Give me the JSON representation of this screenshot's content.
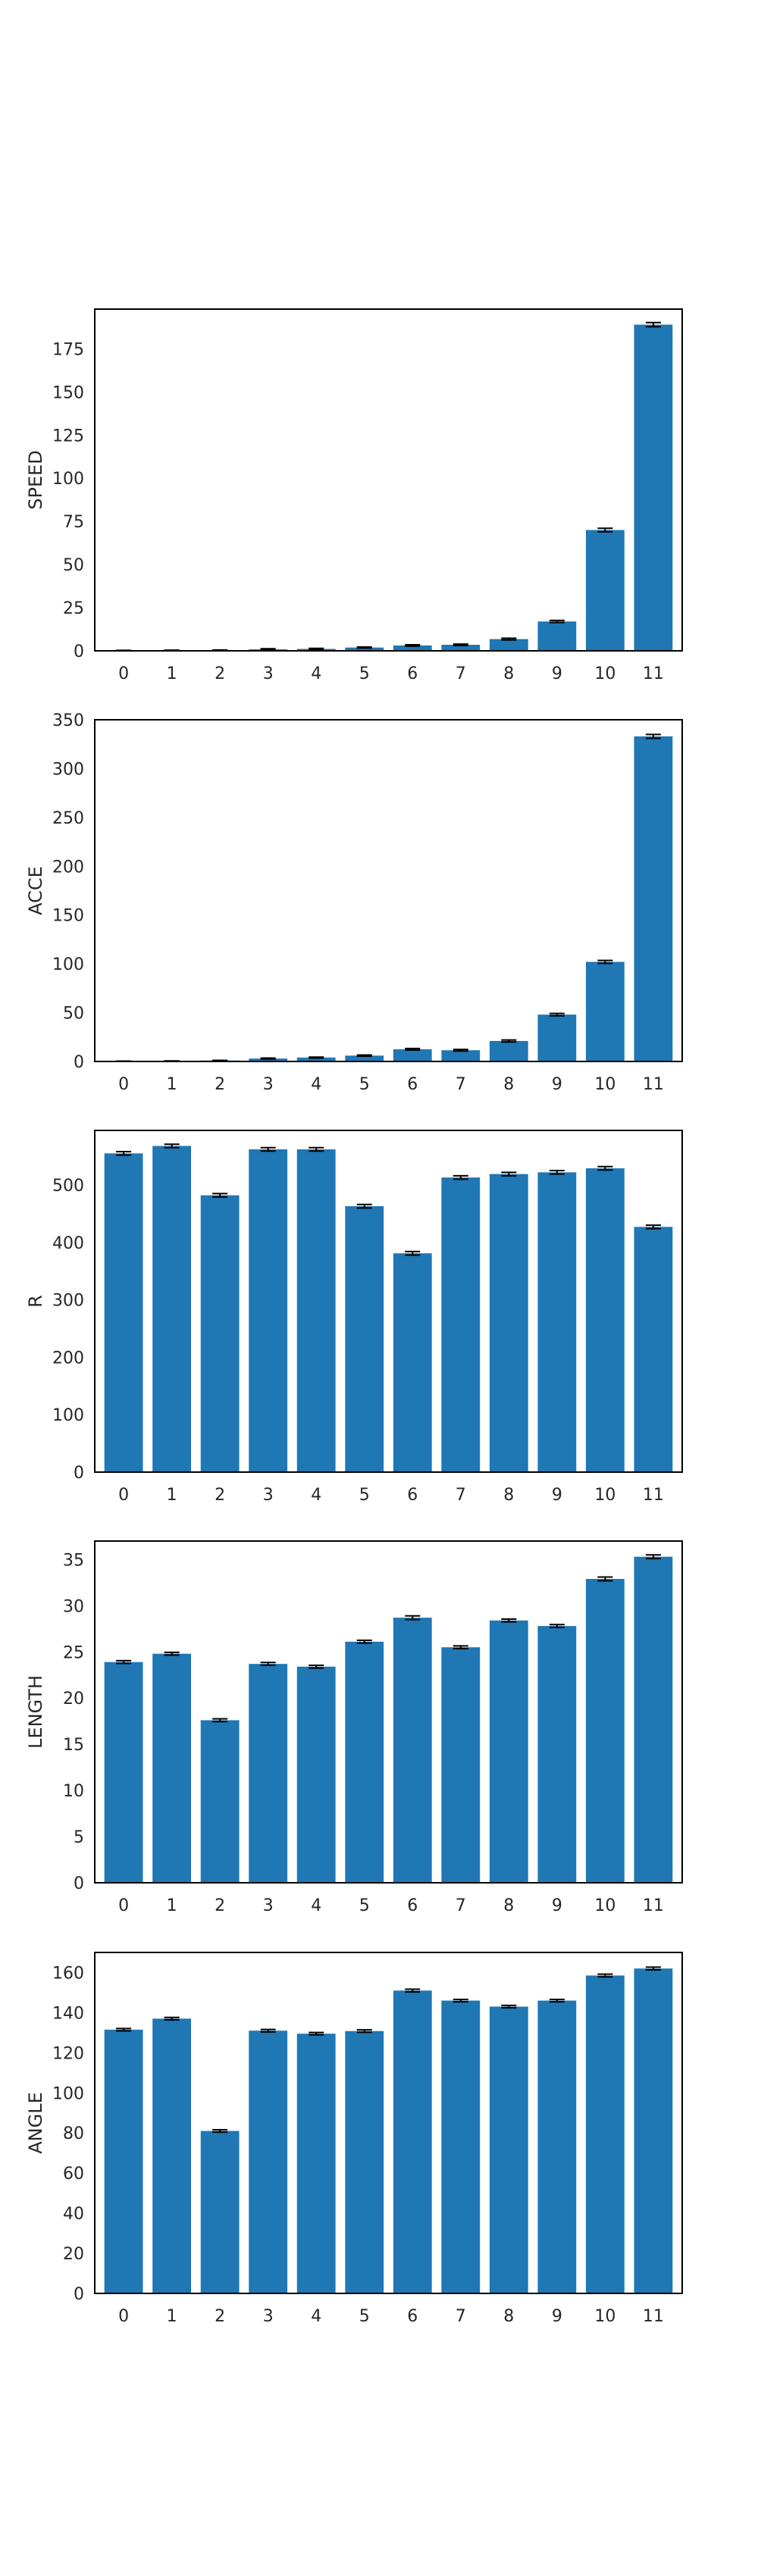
{
  "style": {
    "bar_color": "#1f77b4",
    "errorbar_color": "#000000",
    "frame_color": "#000000",
    "background": "#ffffff"
  },
  "chart_data": [
    {
      "type": "bar",
      "categories": [
        "0",
        "1",
        "2",
        "3",
        "4",
        "5",
        "6",
        "7",
        "8",
        "9",
        "10",
        "11"
      ],
      "values": [
        0.2,
        0.3,
        0.4,
        0.9,
        1.1,
        1.9,
        3.1,
        3.5,
        6.8,
        17.0,
        70.0,
        189.0
      ],
      "errors": [
        0.1,
        0.1,
        0.1,
        0.3,
        0.3,
        0.3,
        0.4,
        0.4,
        0.5,
        0.6,
        1.0,
        1.2
      ],
      "xlabel": "",
      "ylabel": "SPEED",
      "ylim": [
        0,
        198
      ],
      "yticks": [
        0,
        25,
        50,
        75,
        100,
        125,
        150,
        175
      ],
      "grid": false,
      "legend": false
    },
    {
      "type": "bar",
      "categories": [
        "0",
        "1",
        "2",
        "3",
        "4",
        "5",
        "6",
        "7",
        "8",
        "9",
        "10",
        "11"
      ],
      "values": [
        0.3,
        0.5,
        1.0,
        3.0,
        4.0,
        6.0,
        12.5,
        11.5,
        21.0,
        48.0,
        102.0,
        333.0
      ],
      "errors": [
        0.1,
        0.1,
        0.2,
        0.5,
        0.5,
        0.6,
        0.8,
        0.8,
        1.0,
        1.2,
        1.5,
        2.0
      ],
      "xlabel": "",
      "ylabel": "ACCE",
      "ylim": [
        0,
        350
      ],
      "yticks": [
        0,
        50,
        100,
        150,
        200,
        250,
        300,
        350
      ],
      "grid": false,
      "legend": false
    },
    {
      "type": "bar",
      "categories": [
        "0",
        "1",
        "2",
        "3",
        "4",
        "5",
        "6",
        "7",
        "8",
        "9",
        "10",
        "11"
      ],
      "values": [
        555,
        568,
        482,
        562,
        562,
        463,
        381,
        513,
        519,
        522,
        529,
        427
      ],
      "errors": [
        3,
        3,
        3,
        3,
        3,
        3,
        3,
        3,
        3,
        3,
        3,
        3
      ],
      "xlabel": "",
      "ylabel": "R",
      "ylim": [
        0,
        595
      ],
      "yticks": [
        0,
        100,
        200,
        300,
        400,
        500
      ],
      "grid": false,
      "legend": false
    },
    {
      "type": "bar",
      "categories": [
        "0",
        "1",
        "2",
        "3",
        "4",
        "5",
        "6",
        "7",
        "8",
        "9",
        "10",
        "11"
      ],
      "values": [
        23.9,
        24.8,
        17.6,
        23.7,
        23.4,
        26.1,
        28.7,
        25.5,
        28.4,
        27.8,
        32.9,
        35.3
      ],
      "errors": [
        0.15,
        0.15,
        0.15,
        0.15,
        0.15,
        0.15,
        0.2,
        0.15,
        0.15,
        0.15,
        0.2,
        0.2
      ],
      "xlabel": "",
      "ylabel": "LENGTH",
      "ylim": [
        0,
        37.0
      ],
      "yticks": [
        0,
        5,
        10,
        15,
        20,
        25,
        30,
        35
      ],
      "grid": false,
      "legend": false
    },
    {
      "type": "bar",
      "categories": [
        "0",
        "1",
        "2",
        "3",
        "4",
        "5",
        "6",
        "7",
        "8",
        "9",
        "10",
        "11"
      ],
      "values": [
        131.5,
        137.0,
        81.0,
        131.0,
        129.5,
        130.8,
        151.0,
        146.0,
        143.0,
        146.0,
        158.5,
        162.0
      ],
      "errors": [
        0.6,
        0.6,
        0.6,
        0.6,
        0.6,
        0.6,
        0.7,
        0.6,
        0.6,
        0.6,
        0.7,
        0.7
      ],
      "xlabel": "",
      "ylabel": "ANGLE",
      "ylim": [
        0,
        170
      ],
      "yticks": [
        0,
        20,
        40,
        60,
        80,
        100,
        120,
        140,
        160
      ],
      "grid": false,
      "legend": false
    }
  ]
}
